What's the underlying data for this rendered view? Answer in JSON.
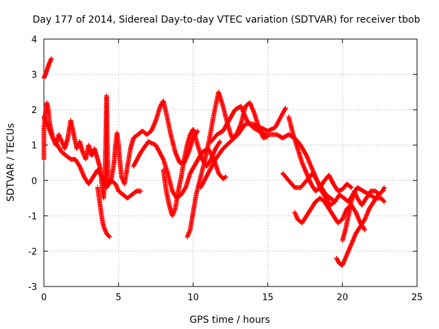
{
  "chart_data": {
    "type": "scatter",
    "title": "Day 177 of 2014, Sidereal Day-to-day VTEC variation (SDTVAR) for receiver tbob",
    "xlabel": "GPS time / hours",
    "ylabel": "SDTVAR / TECUs",
    "xlim": [
      0,
      25
    ],
    "ylim": [
      -3,
      4
    ],
    "x_ticks": [
      0,
      5,
      10,
      15,
      20,
      25
    ],
    "y_ticks": [
      -3,
      -2,
      -1,
      0,
      1,
      2,
      3,
      4
    ],
    "x_tick_labels": [
      "0",
      "5",
      "10",
      "15",
      "20",
      "25"
    ],
    "y_tick_labels": [
      "-3",
      "-2",
      "-1",
      "0",
      "1",
      "2",
      "3",
      "4"
    ],
    "grid": true,
    "marker": "+",
    "color": "#ff0000",
    "series": [
      {
        "name": "track-1",
        "points": [
          [
            0.0,
            2.9
          ],
          [
            0.1,
            3.0
          ],
          [
            0.2,
            3.1
          ],
          [
            0.3,
            3.25
          ],
          [
            0.4,
            3.35
          ],
          [
            0.5,
            3.45
          ]
        ]
      },
      {
        "name": "track-2",
        "points": [
          [
            0.0,
            0.6
          ],
          [
            0.0,
            1.5
          ],
          [
            0.1,
            1.9
          ],
          [
            0.2,
            2.2
          ],
          [
            0.3,
            2.0
          ],
          [
            0.4,
            1.6
          ],
          [
            0.6,
            1.2
          ],
          [
            0.8,
            1.0
          ],
          [
            1.0,
            1.3
          ],
          [
            1.2,
            1.1
          ],
          [
            1.4,
            0.9
          ],
          [
            1.6,
            1.2
          ],
          [
            1.8,
            1.7
          ],
          [
            2.0,
            1.3
          ],
          [
            2.2,
            0.9
          ],
          [
            2.4,
            1.1
          ],
          [
            2.6,
            0.8
          ],
          [
            2.8,
            0.6
          ],
          [
            3.0,
            1.0
          ],
          [
            3.2,
            0.7
          ],
          [
            3.4,
            0.9
          ],
          [
            3.6,
            0.6
          ],
          [
            3.8,
            0.3
          ],
          [
            3.9,
            -0.2
          ],
          [
            4.0,
            -0.5
          ],
          [
            4.1,
            0.2
          ],
          [
            4.15,
            1.2
          ],
          [
            4.2,
            2.4
          ],
          [
            4.25,
            1.0
          ],
          [
            4.3,
            0.0
          ],
          [
            4.4,
            -0.1
          ]
        ]
      },
      {
        "name": "track-3",
        "points": [
          [
            3.6,
            -0.2
          ],
          [
            3.7,
            -0.5
          ],
          [
            3.8,
            -0.8
          ],
          [
            3.9,
            -1.1
          ],
          [
            4.0,
            -1.3
          ],
          [
            4.2,
            -1.5
          ],
          [
            4.4,
            -1.6
          ]
        ]
      },
      {
        "name": "track-4",
        "points": [
          [
            0.0,
            1.8
          ],
          [
            0.3,
            1.5
          ],
          [
            0.6,
            1.2
          ],
          [
            0.9,
            1.0
          ],
          [
            1.2,
            0.8
          ],
          [
            1.5,
            0.7
          ],
          [
            1.8,
            0.6
          ],
          [
            2.1,
            0.6
          ],
          [
            2.4,
            0.4
          ],
          [
            2.7,
            0.1
          ],
          [
            3.0,
            -0.1
          ],
          [
            3.3,
            0.1
          ],
          [
            3.6,
            0.3
          ],
          [
            3.9,
            0.1
          ],
          [
            4.2,
            -0.2
          ],
          [
            4.5,
            0.0
          ],
          [
            4.8,
            -0.1
          ],
          [
            5.0,
            -0.3
          ],
          [
            5.3,
            -0.4
          ],
          [
            5.6,
            -0.5
          ],
          [
            5.9,
            -0.4
          ],
          [
            6.2,
            -0.3
          ],
          [
            6.5,
            -0.3
          ]
        ]
      },
      {
        "name": "track-5",
        "points": [
          [
            4.5,
            0.0
          ],
          [
            4.7,
            0.5
          ],
          [
            4.8,
            1.0
          ],
          [
            4.9,
            1.35
          ],
          [
            5.0,
            1.0
          ],
          [
            5.1,
            0.5
          ],
          [
            5.2,
            0.1
          ],
          [
            5.4,
            -0.1
          ],
          [
            5.6,
            0.4
          ],
          [
            5.8,
            0.9
          ],
          [
            6.0,
            1.2
          ],
          [
            6.3,
            1.3
          ],
          [
            6.6,
            1.4
          ],
          [
            6.9,
            1.3
          ],
          [
            7.2,
            1.4
          ],
          [
            7.5,
            1.7
          ],
          [
            7.8,
            2.1
          ],
          [
            8.0,
            2.25
          ],
          [
            8.2,
            1.9
          ],
          [
            8.5,
            1.3
          ],
          [
            8.8,
            0.8
          ],
          [
            9.1,
            0.5
          ],
          [
            9.4,
            0.5
          ],
          [
            9.7,
            0.8
          ],
          [
            10.0,
            1.2
          ],
          [
            10.3,
            1.4
          ]
        ]
      },
      {
        "name": "track-6",
        "points": [
          [
            6.0,
            0.4
          ],
          [
            6.5,
            0.8
          ],
          [
            7.0,
            1.1
          ],
          [
            7.5,
            1.0
          ],
          [
            8.0,
            0.6
          ],
          [
            8.3,
            0.2
          ],
          [
            8.6,
            -0.3
          ],
          [
            8.9,
            -0.5
          ],
          [
            9.2,
            -0.4
          ],
          [
            9.5,
            -0.2
          ],
          [
            9.8,
            0.2
          ],
          [
            10.2,
            0.5
          ],
          [
            10.6,
            0.8
          ],
          [
            11.0,
            0.9
          ],
          [
            11.4,
            0.6
          ],
          [
            11.7,
            0.2
          ],
          [
            12.0,
            0.05
          ],
          [
            12.2,
            0.1
          ]
        ]
      },
      {
        "name": "track-7",
        "points": [
          [
            8.0,
            0.3
          ],
          [
            8.2,
            -0.3
          ],
          [
            8.4,
            -0.7
          ],
          [
            8.6,
            -1.0
          ],
          [
            8.8,
            -0.8
          ],
          [
            9.0,
            -0.3
          ],
          [
            9.2,
            0.1
          ],
          [
            9.4,
            0.6
          ],
          [
            9.6,
            1.0
          ],
          [
            9.8,
            1.3
          ],
          [
            10.0,
            1.45
          ],
          [
            10.3,
            1.0
          ],
          [
            10.6,
            0.6
          ],
          [
            10.9,
            0.4
          ],
          [
            11.2,
            0.6
          ],
          [
            11.5,
            0.9
          ],
          [
            11.8,
            1.1
          ]
        ]
      },
      {
        "name": "track-8",
        "points": [
          [
            9.6,
            -1.6
          ],
          [
            9.8,
            -1.4
          ],
          [
            10.0,
            -0.9
          ],
          [
            10.2,
            -0.4
          ],
          [
            10.5,
            0.1
          ],
          [
            10.8,
            0.6
          ],
          [
            11.1,
            1.2
          ],
          [
            11.4,
            1.9
          ],
          [
            11.7,
            2.5
          ],
          [
            12.0,
            2.1
          ],
          [
            12.3,
            1.6
          ],
          [
            12.6,
            1.2
          ],
          [
            12.9,
            1.3
          ],
          [
            13.2,
            1.6
          ],
          [
            13.5,
            2.1
          ],
          [
            13.8,
            2.2
          ],
          [
            14.1,
            1.9
          ],
          [
            14.4,
            1.5
          ],
          [
            14.7,
            1.2
          ],
          [
            15.0,
            1.25
          ]
        ]
      },
      {
        "name": "track-9",
        "points": [
          [
            10.5,
            -0.2
          ],
          [
            11.0,
            0.2
          ],
          [
            11.5,
            0.6
          ],
          [
            12.0,
            0.9
          ],
          [
            12.5,
            1.1
          ],
          [
            13.0,
            1.3
          ],
          [
            13.5,
            1.6
          ],
          [
            14.0,
            1.6
          ],
          [
            14.5,
            1.5
          ],
          [
            15.0,
            1.4
          ],
          [
            15.5,
            1.5
          ],
          [
            16.0,
            1.9
          ],
          [
            16.2,
            2.05
          ]
        ]
      },
      {
        "name": "track-10",
        "points": [
          [
            11.2,
            1.1
          ],
          [
            11.6,
            1.3
          ],
          [
            12.0,
            1.4
          ],
          [
            12.4,
            1.7
          ],
          [
            12.8,
            2.0
          ],
          [
            13.2,
            2.1
          ],
          [
            13.6,
            1.7
          ],
          [
            14.0,
            1.5
          ],
          [
            14.4,
            1.4
          ],
          [
            14.8,
            1.3
          ],
          [
            15.2,
            1.3
          ],
          [
            15.6,
            1.3
          ],
          [
            16.0,
            1.2
          ],
          [
            16.4,
            1.3
          ],
          [
            16.8,
            1.2
          ],
          [
            17.2,
            1.0
          ],
          [
            17.6,
            0.7
          ],
          [
            18.0,
            0.3
          ],
          [
            18.3,
            0.0
          ],
          [
            18.6,
            -0.2
          ],
          [
            18.9,
            -0.4
          ],
          [
            19.2,
            -0.5
          ],
          [
            19.5,
            -0.6
          ]
        ]
      },
      {
        "name": "track-11",
        "points": [
          [
            16.0,
            0.2
          ],
          [
            16.4,
            0.0
          ],
          [
            16.8,
            -0.2
          ],
          [
            17.2,
            -0.2
          ],
          [
            17.6,
            0.0
          ],
          [
            18.0,
            0.2
          ],
          [
            18.3,
            0.0
          ],
          [
            18.6,
            -0.3
          ],
          [
            18.9,
            -0.5
          ],
          [
            19.2,
            -0.7
          ],
          [
            19.5,
            -0.6
          ],
          [
            19.8,
            -0.4
          ],
          [
            20.1,
            -0.5
          ],
          [
            20.4,
            -0.6
          ],
          [
            20.7,
            -0.4
          ],
          [
            21.0,
            -0.2
          ],
          [
            21.4,
            -0.3
          ],
          [
            21.8,
            -0.4
          ],
          [
            22.2,
            -0.5
          ],
          [
            22.6,
            -0.5
          ],
          [
            22.8,
            -0.6
          ]
        ]
      },
      {
        "name": "track-12",
        "points": [
          [
            16.8,
            -0.9
          ],
          [
            17.0,
            -1.1
          ],
          [
            17.3,
            -1.2
          ],
          [
            17.6,
            -1.0
          ],
          [
            17.9,
            -0.8
          ],
          [
            18.2,
            -0.6
          ],
          [
            18.5,
            -0.5
          ],
          [
            18.8,
            -0.6
          ],
          [
            19.1,
            -0.8
          ],
          [
            19.4,
            -1.0
          ],
          [
            19.7,
            -1.2
          ],
          [
            20.0,
            -1.1
          ],
          [
            20.3,
            -0.8
          ],
          [
            20.6,
            -0.7
          ],
          [
            20.9,
            -0.9
          ],
          [
            21.2,
            -1.2
          ],
          [
            21.5,
            -1.4
          ]
        ]
      },
      {
        "name": "track-13",
        "points": [
          [
            16.4,
            1.8
          ],
          [
            16.7,
            1.3
          ],
          [
            17.0,
            0.9
          ],
          [
            17.3,
            0.5
          ],
          [
            17.6,
            0.2
          ],
          [
            17.9,
            -0.1
          ],
          [
            18.2,
            -0.3
          ],
          [
            18.5,
            -0.2
          ],
          [
            18.8,
            0.0
          ],
          [
            19.1,
            0.15
          ],
          [
            19.4,
            -0.1
          ],
          [
            19.7,
            -0.3
          ],
          [
            20.0,
            -0.25
          ],
          [
            20.3,
            -0.1
          ],
          [
            20.6,
            -0.2
          ]
        ]
      },
      {
        "name": "track-14",
        "points": [
          [
            19.6,
            -2.2
          ],
          [
            19.8,
            -2.35
          ],
          [
            20.0,
            -2.4
          ],
          [
            20.3,
            -2.1
          ],
          [
            20.6,
            -1.8
          ],
          [
            20.9,
            -1.5
          ],
          [
            21.2,
            -1.3
          ],
          [
            21.5,
            -1.1
          ],
          [
            21.8,
            -0.8
          ],
          [
            22.1,
            -0.6
          ],
          [
            22.4,
            -0.4
          ],
          [
            22.7,
            -0.3
          ],
          [
            22.8,
            -0.2
          ]
        ]
      },
      {
        "name": "track-15",
        "points": [
          [
            20.0,
            -1.7
          ],
          [
            20.2,
            -1.4
          ],
          [
            20.4,
            -1.0
          ],
          [
            20.6,
            -0.6
          ],
          [
            20.8,
            -0.3
          ],
          [
            21.0,
            -0.5
          ],
          [
            21.3,
            -0.7
          ],
          [
            21.6,
            -0.5
          ],
          [
            21.9,
            -0.3
          ],
          [
            22.2,
            -0.3
          ],
          [
            22.5,
            -0.4
          ]
        ]
      }
    ]
  }
}
